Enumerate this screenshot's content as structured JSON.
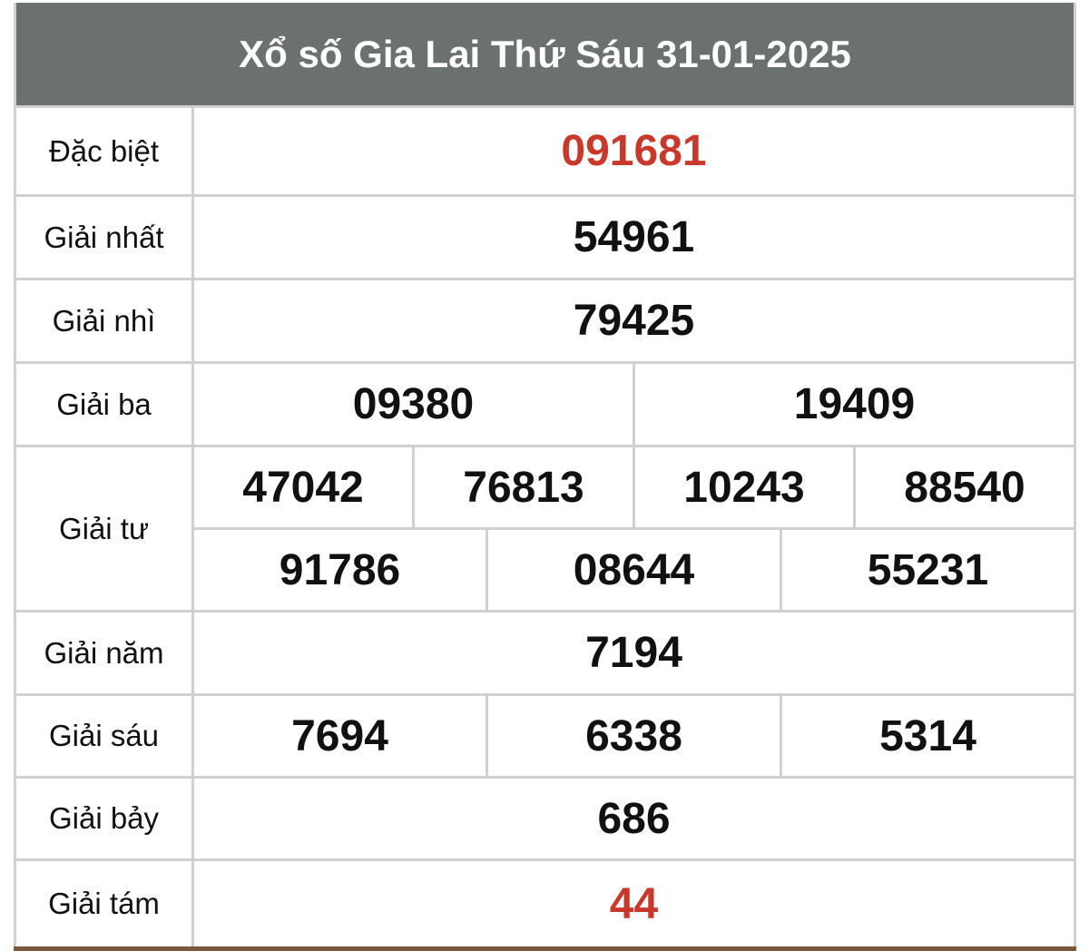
{
  "title": "Xổ số Gia Lai Thứ Sáu 31-01-2025",
  "accent_color": "#c8392b",
  "header_color": "#6b7170",
  "prizes": [
    {
      "label": "Đặc biệt",
      "rows": [
        [
          "091681"
        ]
      ],
      "highlight": true
    },
    {
      "label": "Giải nhất",
      "rows": [
        [
          "54961"
        ]
      ]
    },
    {
      "label": "Giải nhì",
      "rows": [
        [
          "79425"
        ]
      ]
    },
    {
      "label": "Giải ba",
      "rows": [
        [
          "09380",
          "19409"
        ]
      ]
    },
    {
      "label": "Giải tư",
      "rows": [
        [
          "47042",
          "76813",
          "10243",
          "88540"
        ],
        [
          "91786",
          "08644",
          "55231"
        ]
      ]
    },
    {
      "label": "Giải năm",
      "rows": [
        [
          "7194"
        ]
      ]
    },
    {
      "label": "Giải sáu",
      "rows": [
        [
          "7694",
          "6338",
          "5314"
        ]
      ]
    },
    {
      "label": "Giải bảy",
      "rows": [
        [
          "686"
        ]
      ]
    },
    {
      "label": "Giải tám",
      "rows": [
        [
          "44"
        ]
      ],
      "highlight": true
    }
  ]
}
